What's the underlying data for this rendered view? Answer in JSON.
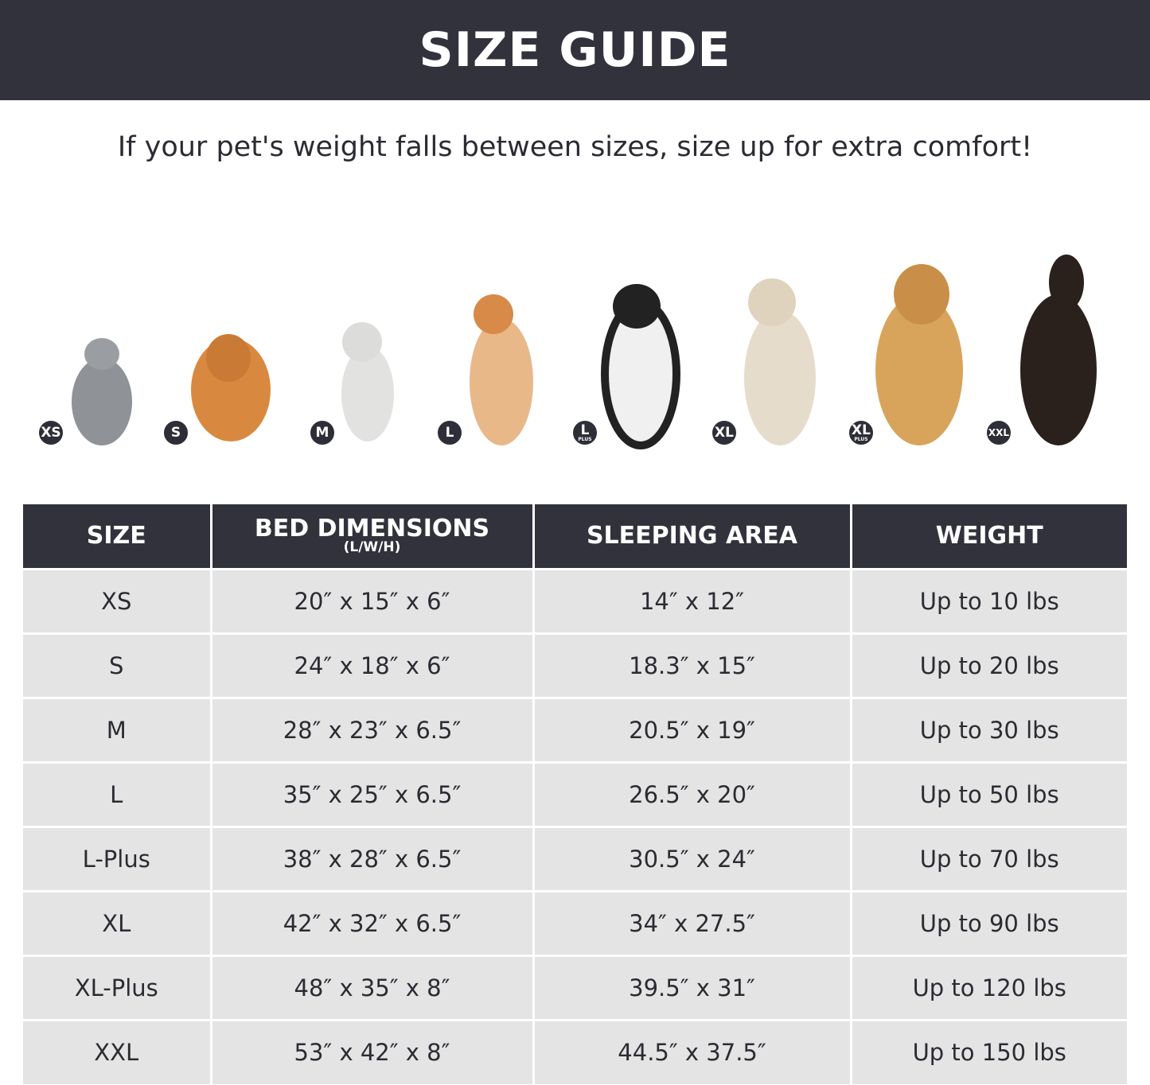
{
  "title": "SIZE GUIDE",
  "subtitle": "If your pet's weight falls between sizes, size up for extra comfort!",
  "badges": [
    {
      "label": "XS",
      "sub": ""
    },
    {
      "label": "S",
      "sub": ""
    },
    {
      "label": "M",
      "sub": ""
    },
    {
      "label": "L",
      "sub": ""
    },
    {
      "label": "L",
      "sub": "PLUS"
    },
    {
      "label": "XL",
      "sub": ""
    },
    {
      "label": "XL",
      "sub": "PLUS"
    },
    {
      "label": "XXL",
      "sub": ""
    }
  ],
  "table": {
    "headers": [
      "SIZE",
      "BED DIMENSIONS",
      "SLEEPING AREA",
      "WEIGHT"
    ],
    "header_note": "(L/W/H)",
    "rows": [
      [
        "XS",
        "20″ x 15″ x 6″",
        "14″ x 12″",
        "Up to 10 lbs"
      ],
      [
        "S",
        "24″ x 18″ x 6″",
        "18.3″ x 15″",
        "Up to 20 lbs"
      ],
      [
        "M",
        "28″ x 23″ x 6.5″",
        "20.5″ x 19″",
        "Up to 30 lbs"
      ],
      [
        "L",
        "35″ x 25″ x 6.5″",
        "26.5″ x 20″",
        "Up to 50 lbs"
      ],
      [
        "L-Plus",
        "38″ x 28″ x 6.5″",
        "30.5″ x 24″",
        "Up to 70 lbs"
      ],
      [
        "XL",
        "42″ x 32″ x 6.5″",
        "34″ x 27.5″",
        "Up to 90 lbs"
      ],
      [
        "XL-Plus",
        "48″ x 35″ x 8″",
        "39.5″ x 31″",
        "Up to 120 lbs"
      ],
      [
        "XXL",
        "53″ x 42″ x 8″",
        "44.5″ x 37.5″",
        "Up to 150 lbs"
      ]
    ]
  }
}
